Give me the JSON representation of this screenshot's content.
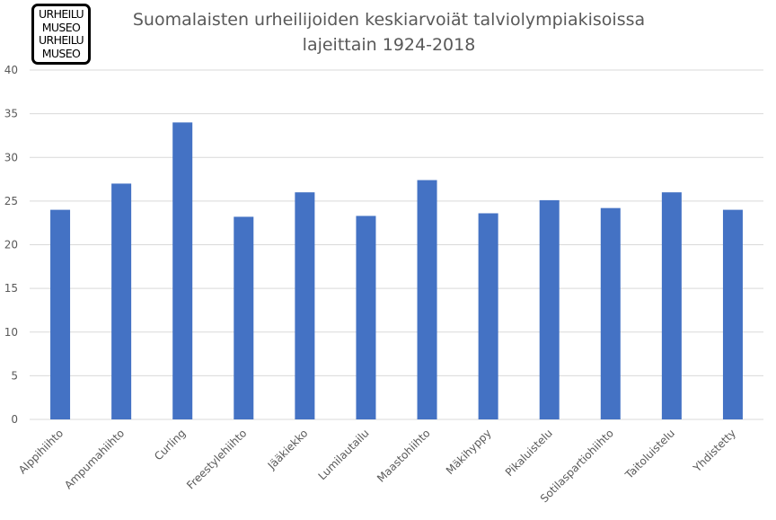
{
  "logo": {
    "lines": [
      "URHEILU",
      "MUSEO",
      "URHEILU",
      "MUSEO"
    ]
  },
  "chart_data": {
    "type": "bar",
    "title_lines": [
      "Suomalaisten urheilijoiden keskiarvoiät talviolympiakisoissa",
      "lajeittain 1924-2018"
    ],
    "categories": [
      "Alppihiihto",
      "Ampumahiihto",
      "Curling",
      "Freestylehiihto",
      "Jääkiekko",
      "Lumilautailu",
      "Maastohiihto",
      "Mäkihyppy",
      "Pikaluistelu",
      "Sotilaspartiohiihto",
      "Taitoluistelu",
      "Yhdistetty"
    ],
    "values": [
      24.0,
      27.0,
      34.0,
      23.2,
      26.0,
      23.3,
      27.4,
      23.6,
      25.1,
      24.2,
      26.0,
      24.0
    ],
    "ylim": [
      0,
      40
    ],
    "y_ticks": [
      0,
      5,
      10,
      15,
      20,
      25,
      30,
      35,
      40
    ],
    "grid": true,
    "legend": "none",
    "bar_color": "#4472C4",
    "grid_color": "#D9D9D9",
    "text_color": "#595959"
  }
}
